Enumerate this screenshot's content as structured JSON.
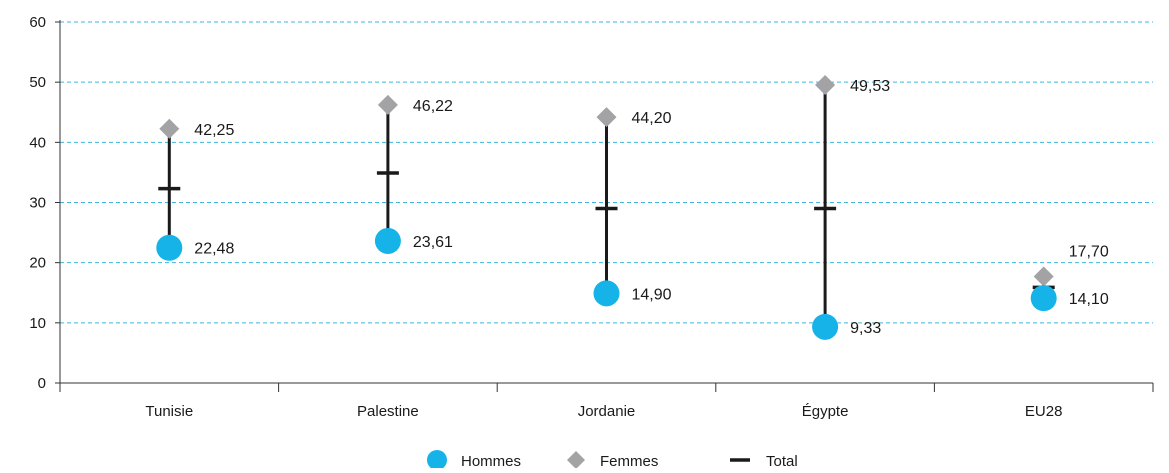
{
  "chart_data": {
    "type": "scatter",
    "categories": [
      "Tunisie",
      "Palestine",
      "Jordanie",
      "Égypte",
      "EU28"
    ],
    "ylim": [
      0,
      60
    ],
    "yticks": [
      0,
      10,
      20,
      30,
      40,
      50,
      60
    ],
    "grid": true,
    "legend_position": "bottom",
    "series": [
      {
        "name": "Hommes",
        "values": [
          22.48,
          23.61,
          14.9,
          9.33,
          14.1
        ],
        "labels": [
          "22,48",
          "23,61",
          "14,90",
          "9,33",
          "14,10"
        ],
        "color": "#16b3e8",
        "marker": "circle"
      },
      {
        "name": "Femmes",
        "values": [
          42.25,
          46.22,
          44.2,
          49.53,
          17.7
        ],
        "labels": [
          "42,25",
          "46,22",
          "44,20",
          "49,53",
          "17,70"
        ],
        "color": "#a3a3a6",
        "marker": "diamond"
      },
      {
        "name": "Total",
        "values": [
          32.3,
          34.9,
          29.0,
          29.0,
          15.9
        ],
        "color": "#1a1a1a",
        "marker": "dash"
      }
    ],
    "xlabel": "",
    "ylabel": "",
    "title": ""
  },
  "colors": {
    "grid": "#3fb6dd",
    "axis": "#333333",
    "range_line": "#1a1a1a"
  }
}
